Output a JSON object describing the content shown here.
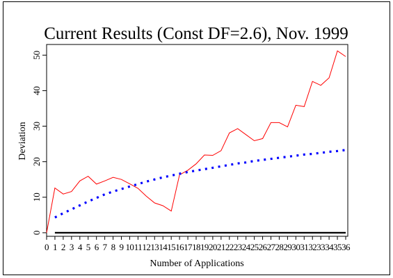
{
  "chart_data": {
    "type": "line",
    "title": "Current Results (Const DF=2.6), Nov. 1999",
    "xlabel": "Number of Applications",
    "ylabel": "Deviation",
    "xlim": [
      0,
      36
    ],
    "ylim": [
      -1,
      53
    ],
    "x_ticks": [
      "0",
      "1",
      "2",
      "3",
      "4",
      "5",
      "6",
      "7",
      "8",
      "9",
      "10",
      "11",
      "12",
      "13",
      "14",
      "15",
      "16",
      "17",
      "18",
      "19",
      "20",
      "21",
      "22",
      "23",
      "24",
      "25",
      "26",
      "27",
      "28",
      "29",
      "30",
      "31",
      "32",
      "33",
      "34",
      "35",
      "36"
    ],
    "y_ticks": [
      "0",
      "10",
      "20",
      "30",
      "40",
      "50"
    ],
    "series": [
      {
        "color": "#ff0000",
        "style": "solid",
        "x": [
          0,
          1,
          2,
          3,
          4,
          5,
          6,
          7,
          8,
          9,
          10,
          11,
          12,
          13,
          14,
          15,
          16,
          17,
          18,
          19,
          20,
          21,
          22,
          23,
          24,
          25,
          26,
          27,
          28,
          29,
          30,
          31,
          32,
          33,
          34,
          35,
          36
        ],
        "values": [
          0,
          12.6,
          10.9,
          11.6,
          14.6,
          15.9,
          13.7,
          14.6,
          15.6,
          15.0,
          13.8,
          12.5,
          10.3,
          8.4,
          7.6,
          6.1,
          16.3,
          17.6,
          19.4,
          21.9,
          21.8,
          23.1,
          28.1,
          29.3,
          27.6,
          25.9,
          26.5,
          31.0,
          31.0,
          29.8,
          35.9,
          35.5,
          42.6,
          41.5,
          43.6,
          51.2,
          49.6
        ]
      },
      {
        "color": "#0000ff",
        "style": "dotted",
        "x": [
          1,
          2,
          3,
          4,
          5,
          6,
          7,
          8,
          9,
          10,
          11,
          12,
          13,
          14,
          15,
          16,
          17,
          18,
          19,
          20,
          21,
          22,
          23,
          24,
          25,
          26,
          27,
          28,
          29,
          30,
          31,
          32,
          33,
          34,
          35,
          36
        ],
        "values": [
          4.3,
          5.5,
          6.6,
          7.7,
          8.8,
          9.8,
          10.8,
          11.6,
          12.3,
          13.0,
          13.7,
          14.4,
          15.0,
          15.6,
          16.1,
          16.6,
          17.1,
          17.5,
          17.9,
          18.3,
          18.7,
          19.1,
          19.5,
          19.8,
          20.2,
          20.5,
          20.8,
          21.1,
          21.4,
          21.7,
          22.0,
          22.2,
          22.5,
          22.8,
          23.0,
          23.3
        ]
      },
      {
        "color": "#000000",
        "style": "solid-thick",
        "x": [
          1,
          36
        ],
        "values": [
          0,
          0
        ]
      }
    ]
  }
}
